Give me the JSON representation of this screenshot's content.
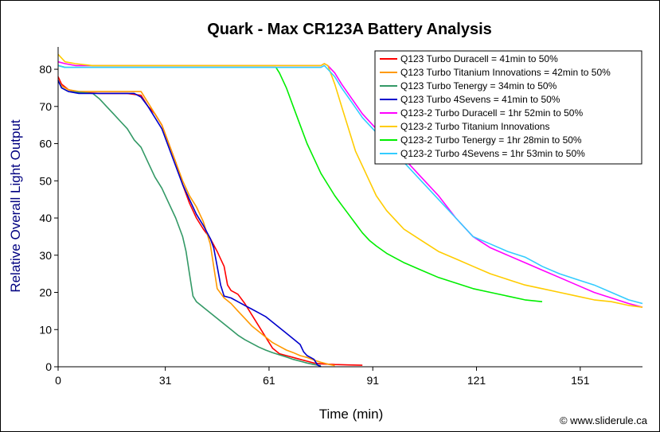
{
  "chart_data": {
    "type": "line",
    "title": "Quark - Max CR123A Battery Analysis",
    "xlabel": "Time (min)",
    "ylabel": "Relative Overall Light Output",
    "xlim": [
      0,
      169
    ],
    "ylim": [
      0,
      86
    ],
    "x_ticks": [
      0,
      31,
      61,
      91,
      121,
      151
    ],
    "y_ticks": [
      0,
      10,
      20,
      30,
      40,
      50,
      60,
      70,
      80
    ],
    "grid": false,
    "legend_position": "top-right",
    "credit": "© www.sliderule.ca",
    "series": [
      {
        "name": "Q123 Turbo Duracell = 41min to 50%",
        "color": "#ff0000",
        "points": [
          [
            0,
            78
          ],
          [
            1,
            76
          ],
          [
            3,
            74.5
          ],
          [
            6,
            73.8
          ],
          [
            12,
            73.5
          ],
          [
            20,
            73.5
          ],
          [
            24,
            73
          ],
          [
            26,
            70
          ],
          [
            28,
            68
          ],
          [
            30,
            65
          ],
          [
            32,
            60
          ],
          [
            34,
            55
          ],
          [
            36,
            49
          ],
          [
            38,
            44
          ],
          [
            40,
            40
          ],
          [
            42,
            37
          ],
          [
            44,
            34.5
          ],
          [
            46,
            31
          ],
          [
            47,
            29
          ],
          [
            48,
            27
          ],
          [
            49,
            22
          ],
          [
            50,
            20.5
          ],
          [
            52,
            19.5
          ],
          [
            54,
            17
          ],
          [
            56,
            14
          ],
          [
            58,
            11
          ],
          [
            60,
            8
          ],
          [
            62,
            5
          ],
          [
            64,
            3.5
          ],
          [
            66,
            3
          ],
          [
            68,
            2.5
          ],
          [
            70,
            2
          ],
          [
            72,
            1.5
          ],
          [
            74,
            1
          ],
          [
            76,
            0.8
          ],
          [
            80,
            0.6
          ],
          [
            84,
            0.5
          ],
          [
            88,
            0.4
          ]
        ]
      },
      {
        "name": "Q123 Turbo Titanium Innovations = 42min to 50%",
        "color": "#ff9900",
        "points": [
          [
            0,
            77
          ],
          [
            1,
            75.5
          ],
          [
            3,
            74.5
          ],
          [
            6,
            74
          ],
          [
            12,
            74
          ],
          [
            20,
            74
          ],
          [
            24,
            74
          ],
          [
            26,
            71
          ],
          [
            28,
            68
          ],
          [
            30,
            65
          ],
          [
            32,
            60
          ],
          [
            34,
            55
          ],
          [
            36,
            50
          ],
          [
            38,
            46
          ],
          [
            40,
            43
          ],
          [
            42,
            39
          ],
          [
            44,
            33
          ],
          [
            45,
            27
          ],
          [
            46,
            21
          ],
          [
            48,
            18.5
          ],
          [
            50,
            17
          ],
          [
            52,
            15
          ],
          [
            54,
            13
          ],
          [
            56,
            11
          ],
          [
            58,
            9.5
          ],
          [
            60,
            8
          ],
          [
            62,
            6.5
          ],
          [
            64,
            5.5
          ],
          [
            66,
            4.5
          ],
          [
            68,
            3.8
          ],
          [
            70,
            3
          ],
          [
            72,
            2.5
          ],
          [
            74,
            1.8
          ],
          [
            76,
            1.2
          ],
          [
            78,
            0.7
          ],
          [
            80,
            0.3
          ]
        ]
      },
      {
        "name": "Q123 Turbo Tenergy = 34min to 50%",
        "color": "#339966",
        "points": [
          [
            0,
            77
          ],
          [
            1,
            75
          ],
          [
            3,
            74
          ],
          [
            6,
            73.8
          ],
          [
            10,
            73.5
          ],
          [
            12,
            72
          ],
          [
            14,
            70
          ],
          [
            16,
            68
          ],
          [
            18,
            66
          ],
          [
            20,
            64
          ],
          [
            22,
            61
          ],
          [
            24,
            59
          ],
          [
            26,
            55
          ],
          [
            28,
            51
          ],
          [
            30,
            48
          ],
          [
            32,
            44
          ],
          [
            34,
            40
          ],
          [
            36,
            35
          ],
          [
            37,
            31
          ],
          [
            38,
            25
          ],
          [
            39,
            19
          ],
          [
            40,
            17.5
          ],
          [
            42,
            16
          ],
          [
            44,
            14.5
          ],
          [
            46,
            13
          ],
          [
            48,
            11.5
          ],
          [
            50,
            10
          ],
          [
            52,
            8.5
          ],
          [
            54,
            7.3
          ],
          [
            56,
            6.3
          ],
          [
            58,
            5.3
          ],
          [
            60,
            4.5
          ],
          [
            62,
            3.8
          ],
          [
            64,
            3.2
          ],
          [
            66,
            2.6
          ],
          [
            68,
            2
          ],
          [
            70,
            1.5
          ],
          [
            72,
            1
          ],
          [
            74,
            0.6
          ],
          [
            76,
            0.3
          ]
        ]
      },
      {
        "name": "Q123 Turbo 4Sevens = 41min to 50%",
        "color": "#0000cc",
        "points": [
          [
            0,
            77
          ],
          [
            1,
            75
          ],
          [
            3,
            74
          ],
          [
            6,
            73.5
          ],
          [
            12,
            73.5
          ],
          [
            20,
            73.5
          ],
          [
            22,
            73.5
          ],
          [
            24,
            72.5
          ],
          [
            26,
            70
          ],
          [
            28,
            67
          ],
          [
            30,
            64
          ],
          [
            32,
            59
          ],
          [
            34,
            54
          ],
          [
            36,
            49
          ],
          [
            38,
            45
          ],
          [
            40,
            41
          ],
          [
            42,
            38
          ],
          [
            44,
            34.5
          ],
          [
            45,
            32
          ],
          [
            46,
            27
          ],
          [
            47,
            22
          ],
          [
            48,
            19
          ],
          [
            50,
            18.5
          ],
          [
            52,
            17.5
          ],
          [
            54,
            16.5
          ],
          [
            56,
            15.5
          ],
          [
            58,
            14.5
          ],
          [
            60,
            13.5
          ],
          [
            62,
            12
          ],
          [
            64,
            10.5
          ],
          [
            66,
            9
          ],
          [
            68,
            7.5
          ],
          [
            70,
            6
          ],
          [
            71,
            4
          ],
          [
            72,
            3
          ],
          [
            73,
            2.5
          ],
          [
            74,
            2
          ],
          [
            75,
            0.5
          ],
          [
            76,
            0
          ]
        ]
      },
      {
        "name": "Q123-2 Turbo Duracell = 1hr 52min to 50%",
        "color": "#ff00ff",
        "points": [
          [
            0,
            82
          ],
          [
            2,
            81.5
          ],
          [
            5,
            81
          ],
          [
            10,
            81
          ],
          [
            20,
            81
          ],
          [
            40,
            81
          ],
          [
            60,
            81
          ],
          [
            70,
            81
          ],
          [
            76,
            81
          ],
          [
            77,
            81.5
          ],
          [
            78,
            81
          ],
          [
            80,
            79
          ],
          [
            82,
            76
          ],
          [
            85,
            72
          ],
          [
            88,
            68
          ],
          [
            91,
            65
          ],
          [
            95,
            61
          ],
          [
            100,
            56
          ],
          [
            105,
            51
          ],
          [
            110,
            46
          ],
          [
            115,
            40
          ],
          [
            120,
            35
          ],
          [
            125,
            32
          ],
          [
            130,
            30
          ],
          [
            135,
            28
          ],
          [
            140,
            26
          ],
          [
            145,
            24
          ],
          [
            150,
            22
          ],
          [
            155,
            20
          ],
          [
            160,
            18.5
          ],
          [
            165,
            17
          ],
          [
            169,
            16
          ]
        ]
      },
      {
        "name": "Q123-2 Turbo Titanium Innovations",
        "color": "#ffcc00",
        "points": [
          [
            0,
            84
          ],
          [
            2,
            82
          ],
          [
            5,
            81.5
          ],
          [
            10,
            81
          ],
          [
            20,
            81
          ],
          [
            40,
            81
          ],
          [
            60,
            81
          ],
          [
            70,
            81
          ],
          [
            76,
            81
          ],
          [
            77,
            81.5
          ],
          [
            78,
            81
          ],
          [
            80,
            76
          ],
          [
            82,
            70
          ],
          [
            84,
            64
          ],
          [
            86,
            58
          ],
          [
            88,
            54
          ],
          [
            90,
            50
          ],
          [
            92,
            46
          ],
          [
            95,
            42
          ],
          [
            98,
            39
          ],
          [
            100,
            37
          ],
          [
            105,
            34
          ],
          [
            110,
            31
          ],
          [
            115,
            29
          ],
          [
            120,
            27
          ],
          [
            125,
            25
          ],
          [
            130,
            23.5
          ],
          [
            135,
            22
          ],
          [
            140,
            21
          ],
          [
            145,
            20
          ],
          [
            150,
            19
          ],
          [
            155,
            18
          ],
          [
            160,
            17.5
          ],
          [
            165,
            16.5
          ],
          [
            169,
            16
          ]
        ]
      },
      {
        "name": "Q123-2 Turbo Tenergy = 1hr 28min to 50%",
        "color": "#00ee00",
        "points": [
          [
            0,
            81
          ],
          [
            2,
            80.5
          ],
          [
            5,
            80.5
          ],
          [
            10,
            80.5
          ],
          [
            20,
            80.5
          ],
          [
            40,
            80.5
          ],
          [
            55,
            80.5
          ],
          [
            62,
            80.5
          ],
          [
            63,
            80.5
          ],
          [
            64,
            79
          ],
          [
            66,
            75
          ],
          [
            68,
            70
          ],
          [
            70,
            65
          ],
          [
            72,
            60
          ],
          [
            74,
            56
          ],
          [
            76,
            52
          ],
          [
            78,
            49
          ],
          [
            80,
            46
          ],
          [
            82,
            43.5
          ],
          [
            84,
            41
          ],
          [
            86,
            38.5
          ],
          [
            88,
            36
          ],
          [
            90,
            34
          ],
          [
            92,
            32.5
          ],
          [
            95,
            30.5
          ],
          [
            98,
            29
          ],
          [
            100,
            28
          ],
          [
            105,
            26
          ],
          [
            110,
            24
          ],
          [
            115,
            22.5
          ],
          [
            120,
            21
          ],
          [
            125,
            20
          ],
          [
            130,
            19
          ],
          [
            135,
            18
          ],
          [
            140,
            17.5
          ]
        ]
      },
      {
        "name": "Q123-2 Turbo 4Sevens = 1hr 53min to 50%",
        "color": "#33ccff",
        "points": [
          [
            0,
            81
          ],
          [
            2,
            80.5
          ],
          [
            5,
            80.5
          ],
          [
            10,
            80.5
          ],
          [
            20,
            80.5
          ],
          [
            40,
            80.5
          ],
          [
            60,
            80.5
          ],
          [
            70,
            80.5
          ],
          [
            76,
            80.5
          ],
          [
            77,
            81
          ],
          [
            78,
            80
          ],
          [
            80,
            78
          ],
          [
            82,
            75
          ],
          [
            85,
            71
          ],
          [
            88,
            67
          ],
          [
            91,
            64
          ],
          [
            95,
            60
          ],
          [
            100,
            55
          ],
          [
            105,
            50
          ],
          [
            110,
            45
          ],
          [
            115,
            40
          ],
          [
            120,
            35
          ],
          [
            125,
            33
          ],
          [
            130,
            31
          ],
          [
            135,
            29.5
          ],
          [
            138,
            28
          ],
          [
            140,
            27
          ],
          [
            145,
            25
          ],
          [
            150,
            23.5
          ],
          [
            155,
            22
          ],
          [
            160,
            20
          ],
          [
            165,
            18
          ],
          [
            169,
            17
          ]
        ]
      }
    ]
  }
}
